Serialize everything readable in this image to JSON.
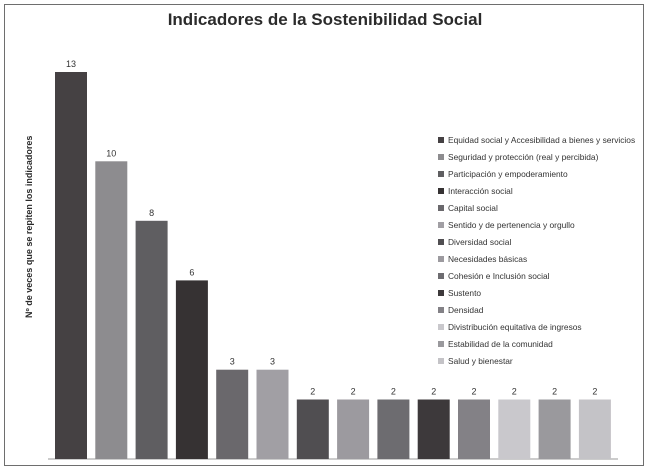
{
  "chart_data": {
    "type": "bar",
    "title": "Indicadores de la Sostenibilidad Social",
    "xlabel": "",
    "ylabel": "Nº de veces que se repiten los indicadores",
    "ylim": [
      0,
      13
    ],
    "grid": false,
    "legend_position": "right",
    "categories": [
      "Equidad social y Accesibilidad a bienes y servicios",
      "Seguridad y protección (real y percibida)",
      "Participación y empoderamiento",
      "Interacción social",
      "Capital social",
      "Sentido y de pertenencia y orgullo",
      "Diversidad social",
      "Necesidades básicas",
      "Cohesión e Inclusión social",
      "Sustento",
      "Densidad",
      "Divistribución equitativa de ingresos",
      "Estabilidad de la comunidad",
      "Salud y bienestar"
    ],
    "values": [
      13,
      10,
      8,
      6,
      3,
      3,
      2,
      2,
      2,
      2,
      2,
      2,
      2,
      2
    ],
    "colors": [
      "#454143",
      "#8d8c8f",
      "#5f5e61",
      "#363233",
      "#6a686c",
      "#a19fa4",
      "#504e51",
      "#9c9a9f",
      "#6d6c70",
      "#3d393b",
      "#838186",
      "#c9c8cc",
      "#9a999d",
      "#c4c3c7"
    ]
  }
}
